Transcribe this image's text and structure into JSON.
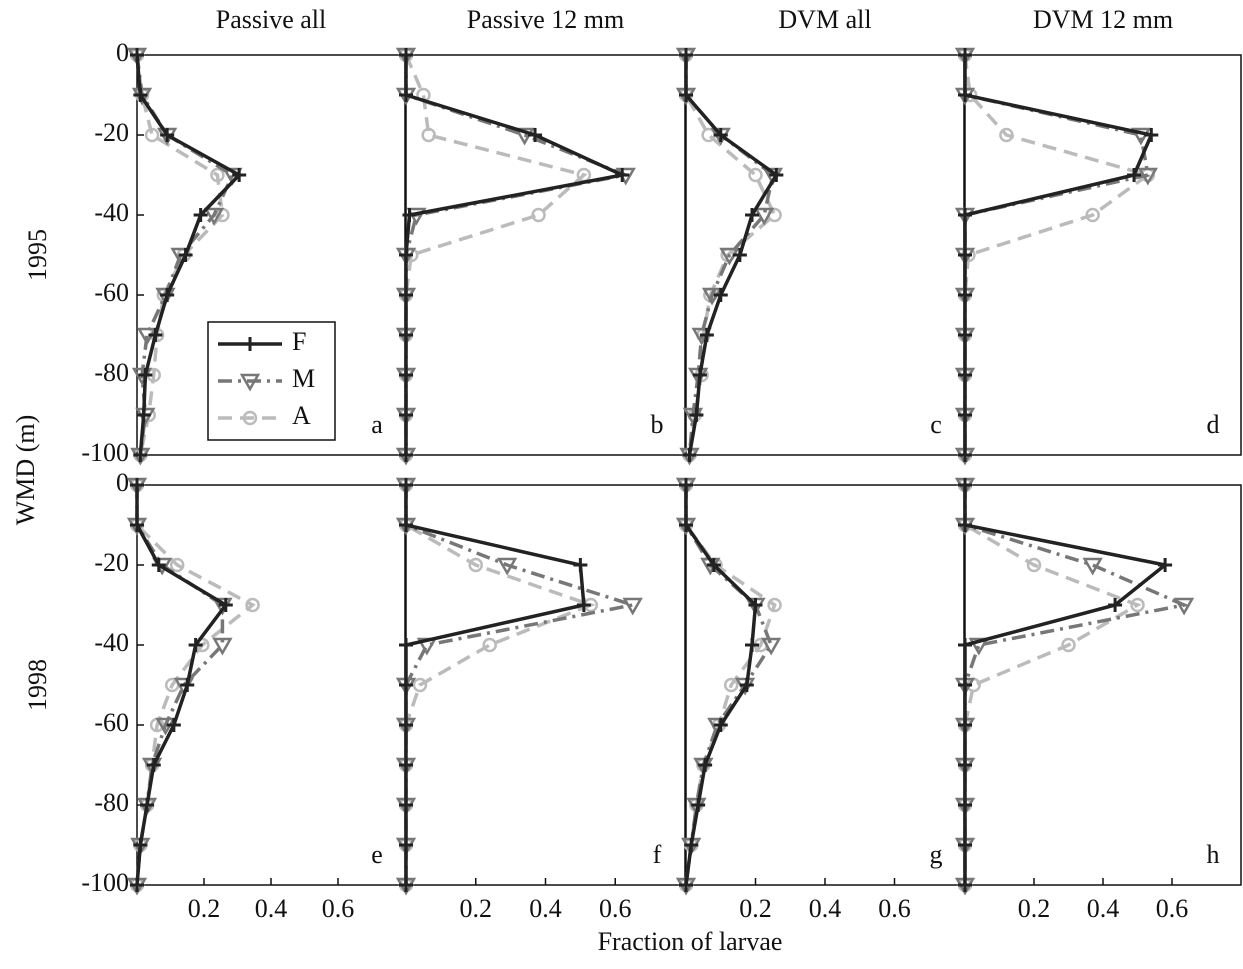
{
  "xlabel": "Fraction of larvae",
  "ylabel": "WMD (m)",
  "chart_data": [
    {
      "type": "line",
      "title": "Passive all",
      "row_label": "1995",
      "panel_label": "a",
      "legend": "lower left",
      "y": [
        0,
        -10,
        -20,
        -30,
        -40,
        -50,
        -60,
        -70,
        -80,
        -90,
        -100
      ],
      "xlim": [
        0,
        0.8
      ],
      "ylim": [
        -100,
        0
      ],
      "yticks": [
        0,
        -20,
        -40,
        -60,
        -80,
        -100
      ],
      "series": [
        {
          "name": "F",
          "color": "#222222",
          "dash": "solid",
          "marker": "+",
          "values": [
            0,
            0.01,
            0.09,
            0.305,
            0.19,
            0.145,
            0.09,
            0.055,
            0.025,
            0.02,
            0.01
          ]
        },
        {
          "name": "M",
          "color": "#777777",
          "dash": "dashdot",
          "marker": "v",
          "values": [
            0,
            0.015,
            0.09,
            0.285,
            0.23,
            0.13,
            0.085,
            0.03,
            0.015,
            0.025,
            0.01
          ]
        },
        {
          "name": "A",
          "color": "#bbbbbb",
          "dash": "dashed",
          "marker": "o",
          "values": [
            0,
            0.015,
            0.045,
            0.24,
            0.255,
            0.14,
            0.08,
            0.06,
            0.05,
            0.035,
            0.01
          ]
        }
      ]
    },
    {
      "type": "line",
      "title": "Passive 12 mm",
      "panel_label": "b",
      "y": [
        0,
        -10,
        -20,
        -30,
        -40,
        -50,
        -60,
        -70,
        -80,
        -90,
        -100
      ],
      "xlim": [
        0,
        0.8
      ],
      "ylim": [
        -100,
        0
      ],
      "series": [
        {
          "color": "#222222",
          "dash": "solid",
          "marker": "+",
          "values": [
            0,
            0,
            0.37,
            0.62,
            0.01,
            0,
            0,
            0,
            0,
            0,
            0
          ]
        },
        {
          "color": "#777777",
          "dash": "dashdot",
          "marker": "v",
          "values": [
            0,
            0,
            0.34,
            0.63,
            0.03,
            0,
            0,
            0,
            0,
            0,
            0
          ]
        },
        {
          "color": "#bbbbbb",
          "dash": "dashed",
          "marker": "o",
          "values": [
            0,
            0.05,
            0.065,
            0.51,
            0.38,
            0.015,
            0,
            0,
            0,
            0,
            0
          ]
        }
      ]
    },
    {
      "type": "line",
      "title": "DVM all",
      "panel_label": "c",
      "y": [
        0,
        -10,
        -20,
        -30,
        -40,
        -50,
        -60,
        -70,
        -80,
        -90,
        -100
      ],
      "xlim": [
        0,
        0.8
      ],
      "ylim": [
        -100,
        0
      ],
      "series": [
        {
          "color": "#222222",
          "dash": "solid",
          "marker": "+",
          "values": [
            0,
            0,
            0.1,
            0.26,
            0.19,
            0.155,
            0.1,
            0.06,
            0.04,
            0.03,
            0.01
          ]
        },
        {
          "color": "#777777",
          "dash": "dashdot",
          "marker": "v",
          "values": [
            0,
            0,
            0.1,
            0.25,
            0.225,
            0.125,
            0.075,
            0.045,
            0.035,
            0.02,
            0.01
          ]
        },
        {
          "color": "#bbbbbb",
          "dash": "dashed",
          "marker": "o",
          "values": [
            0,
            0,
            0.065,
            0.2,
            0.255,
            0.12,
            0.07,
            0.05,
            0.045,
            0.025,
            0.01
          ]
        }
      ]
    },
    {
      "type": "line",
      "title": "DVM 12 mm",
      "panel_label": "d",
      "y": [
        0,
        -10,
        -20,
        -30,
        -40,
        -50,
        -60,
        -70,
        -80,
        -90,
        -100
      ],
      "xlim": [
        0,
        0.8
      ],
      "ylim": [
        -100,
        0
      ],
      "series": [
        {
          "color": "#222222",
          "dash": "solid",
          "marker": "+",
          "values": [
            0,
            0,
            0.54,
            0.49,
            0,
            0,
            0,
            0,
            0,
            0,
            0
          ]
        },
        {
          "color": "#777777",
          "dash": "dashdot",
          "marker": "v",
          "values": [
            0,
            0,
            0.51,
            0.53,
            0,
            0,
            0,
            0,
            0,
            0,
            0
          ]
        },
        {
          "color": "#bbbbbb",
          "dash": "dashed",
          "marker": "o",
          "values": [
            0,
            0.015,
            0.12,
            0.53,
            0.37,
            0.01,
            0,
            0,
            0,
            0,
            0
          ]
        }
      ]
    },
    {
      "type": "line",
      "row_label": "1998",
      "panel_label": "e",
      "y": [
        0,
        -10,
        -20,
        -30,
        -40,
        -50,
        -60,
        -70,
        -80,
        -90,
        -100
      ],
      "xlim": [
        0,
        0.8
      ],
      "ylim": [
        -100,
        0
      ],
      "yticks": [
        0,
        -20,
        -40,
        -60,
        -80,
        -100
      ],
      "xticks": [
        0.2,
        0.4,
        0.6
      ],
      "series": [
        {
          "color": "#222222",
          "dash": "solid",
          "marker": "+",
          "values": [
            0,
            0,
            0.065,
            0.265,
            0.175,
            0.15,
            0.11,
            0.05,
            0.03,
            0.01,
            0
          ]
        },
        {
          "color": "#777777",
          "dash": "dashdot",
          "marker": "v",
          "values": [
            0,
            0,
            0.075,
            0.255,
            0.255,
            0.14,
            0.085,
            0.045,
            0.03,
            0.01,
            0
          ]
        },
        {
          "color": "#bbbbbb",
          "dash": "dashed",
          "marker": "o",
          "values": [
            0,
            0,
            0.12,
            0.345,
            0.195,
            0.105,
            0.06,
            0.045,
            0.03,
            0.01,
            0
          ]
        }
      ]
    },
    {
      "type": "line",
      "panel_label": "f",
      "y": [
        0,
        -10,
        -20,
        -30,
        -40,
        -50,
        -60,
        -70,
        -80,
        -90,
        -100
      ],
      "xlim": [
        0,
        0.8
      ],
      "ylim": [
        -100,
        0
      ],
      "xticks": [
        0.2,
        0.4,
        0.6
      ],
      "series": [
        {
          "color": "#222222",
          "dash": "solid",
          "marker": "+",
          "values": [
            0,
            0,
            0.5,
            0.51,
            0,
            0,
            0,
            0,
            0,
            0,
            0
          ]
        },
        {
          "color": "#777777",
          "dash": "dashdot",
          "marker": "v",
          "values": [
            0,
            0,
            0.29,
            0.65,
            0.06,
            0,
            0,
            0,
            0,
            0,
            0
          ]
        },
        {
          "color": "#bbbbbb",
          "dash": "dashed",
          "marker": "o",
          "values": [
            0,
            0,
            0.2,
            0.53,
            0.24,
            0.04,
            0,
            0,
            0,
            0,
            0
          ]
        }
      ]
    },
    {
      "type": "line",
      "panel_label": "g",
      "y": [
        0,
        -10,
        -20,
        -30,
        -40,
        -50,
        -60,
        -70,
        -80,
        -90,
        -100
      ],
      "xlim": [
        0,
        0.8
      ],
      "ylim": [
        -100,
        0
      ],
      "xticks": [
        0.2,
        0.4,
        0.6
      ],
      "series": [
        {
          "color": "#222222",
          "dash": "solid",
          "marker": "+",
          "values": [
            0,
            0,
            0.08,
            0.2,
            0.19,
            0.175,
            0.1,
            0.055,
            0.035,
            0.015,
            0
          ]
        },
        {
          "color": "#777777",
          "dash": "dashdot",
          "marker": "v",
          "values": [
            0,
            0,
            0.07,
            0.2,
            0.245,
            0.17,
            0.09,
            0.05,
            0.03,
            0.015,
            0
          ]
        },
        {
          "color": "#bbbbbb",
          "dash": "dashed",
          "marker": "o",
          "values": [
            0,
            0,
            0.085,
            0.255,
            0.215,
            0.13,
            0.095,
            0.05,
            0.03,
            0.015,
            0
          ]
        }
      ]
    },
    {
      "type": "line",
      "panel_label": "h",
      "y": [
        0,
        -10,
        -20,
        -30,
        -40,
        -50,
        -60,
        -70,
        -80,
        -90,
        -100
      ],
      "xlim": [
        0,
        0.8
      ],
      "ylim": [
        -100,
        0
      ],
      "xticks": [
        0.2,
        0.4,
        0.6
      ],
      "series": [
        {
          "color": "#222222",
          "dash": "solid",
          "marker": "+",
          "values": [
            0,
            0,
            0.58,
            0.435,
            0,
            0,
            0,
            0,
            0,
            0,
            0
          ]
        },
        {
          "color": "#777777",
          "dash": "dashdot",
          "marker": "v",
          "values": [
            0,
            0,
            0.37,
            0.635,
            0.04,
            0,
            0,
            0,
            0,
            0,
            0
          ]
        },
        {
          "color": "#bbbbbb",
          "dash": "dashed",
          "marker": "o",
          "values": [
            0,
            0,
            0.2,
            0.5,
            0.3,
            0.025,
            0,
            0,
            0,
            0,
            0
          ]
        }
      ]
    }
  ]
}
